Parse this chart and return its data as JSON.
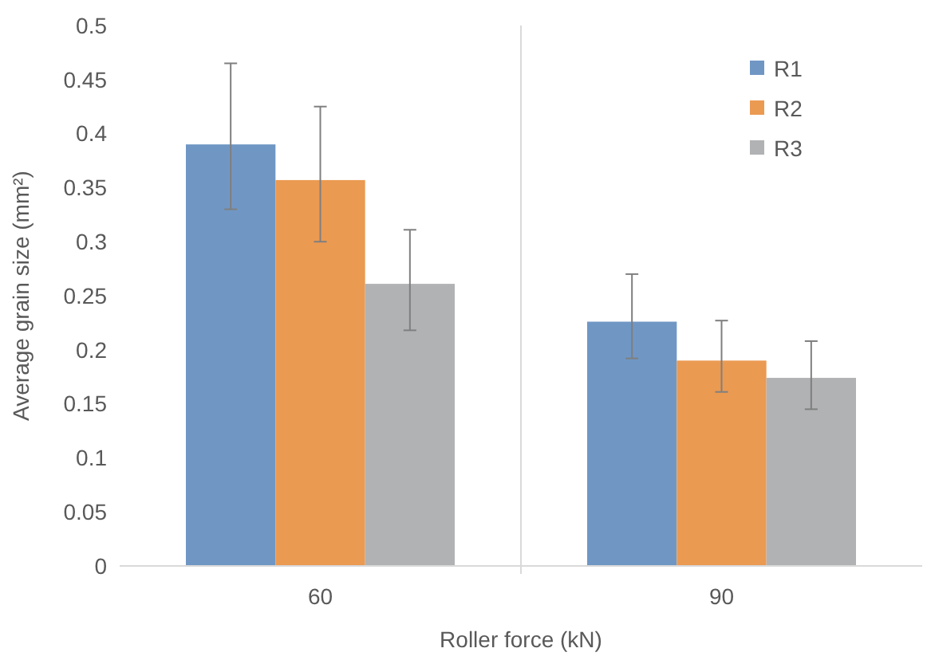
{
  "chart_data": {
    "type": "bar",
    "xlabel": "Roller force (kN)",
    "ylabel": "Average grain size (mm²)",
    "categories": [
      "60",
      "90"
    ],
    "series": [
      {
        "name": "R1",
        "color": "#7097c4",
        "values": [
          0.39,
          0.226
        ],
        "errors": [
          [
            0.33,
            0.465
          ],
          [
            0.192,
            0.27
          ]
        ]
      },
      {
        "name": "R2",
        "color": "#eb9a52",
        "values": [
          0.357,
          0.19
        ],
        "errors": [
          [
            0.3,
            0.425
          ],
          [
            0.161,
            0.227
          ]
        ]
      },
      {
        "name": "R3",
        "color": "#b1b2b4",
        "values": [
          0.261,
          0.174
        ],
        "errors": [
          [
            0.218,
            0.311
          ],
          [
            0.145,
            0.208
          ]
        ]
      }
    ],
    "ylim": [
      0,
      0.5
    ],
    "yticks": [
      0,
      0.05,
      0.1,
      0.15,
      0.2,
      0.25,
      0.3,
      0.35,
      0.4,
      0.45,
      0.5
    ],
    "grid": false,
    "legend": "top right"
  }
}
